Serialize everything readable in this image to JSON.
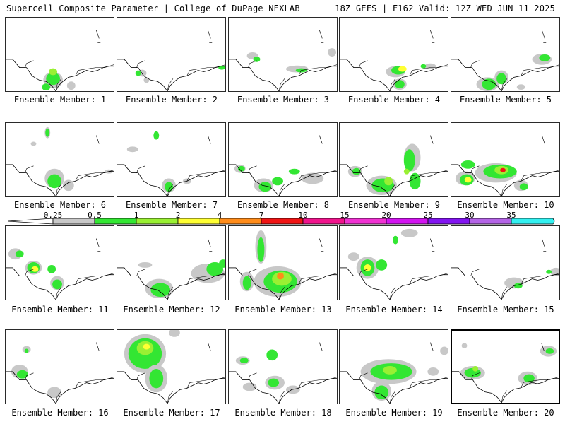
{
  "header": {
    "title_left": "Supercell Composite Parameter | College of DuPage NEXLAB",
    "title_right": "18Z GEFS | F162 Valid: 12Z WED JUN 11 2025"
  },
  "members": [
    {
      "label": "Ensemble Member: 1",
      "selected": false
    },
    {
      "label": "Ensemble Member: 2",
      "selected": false
    },
    {
      "label": "Ensemble Member: 3",
      "selected": false
    },
    {
      "label": "Ensemble Member: 4",
      "selected": false
    },
    {
      "label": "Ensemble Member: 5",
      "selected": false
    },
    {
      "label": "Ensemble Member: 6",
      "selected": false
    },
    {
      "label": "Ensemble Member: 7",
      "selected": false
    },
    {
      "label": "Ensemble Member: 8",
      "selected": false
    },
    {
      "label": "Ensemble Member: 9",
      "selected": false
    },
    {
      "label": "Ensemble Member: 10",
      "selected": false
    },
    {
      "label": "Ensemble Member: 11",
      "selected": false
    },
    {
      "label": "Ensemble Member: 12",
      "selected": false
    },
    {
      "label": "Ensemble Member: 13",
      "selected": false
    },
    {
      "label": "Ensemble Member: 14",
      "selected": false
    },
    {
      "label": "Ensemble Member: 15",
      "selected": false
    },
    {
      "label": "Ensemble Member: 16",
      "selected": false
    },
    {
      "label": "Ensemble Member: 17",
      "selected": false
    },
    {
      "label": "Ensemble Member: 18",
      "selected": false
    },
    {
      "label": "Ensemble Member: 19",
      "selected": false
    },
    {
      "label": "Ensemble Member: 20",
      "selected": true
    }
  ],
  "colorbar": {
    "labels": [
      "0.25",
      "0.5",
      "1",
      "2",
      "4",
      "7",
      "10",
      "15",
      "20",
      "25",
      "30",
      "35"
    ],
    "colors": [
      "#c8c8c8",
      "#33e633",
      "#99f033",
      "#ffff33",
      "#ff8c1a",
      "#f01414",
      "#f0148c",
      "#f032d2",
      "#d214f0",
      "#8214f0",
      "#b464e6",
      "#33f0f0"
    ]
  },
  "map_colors": {
    "gray": "#c8c8c8",
    "green": "#33e633",
    "lightgreen": "#99f033",
    "yellow": "#ffff33",
    "orange": "#ff8c1a",
    "red": "#f01414",
    "outline": "#000000"
  }
}
